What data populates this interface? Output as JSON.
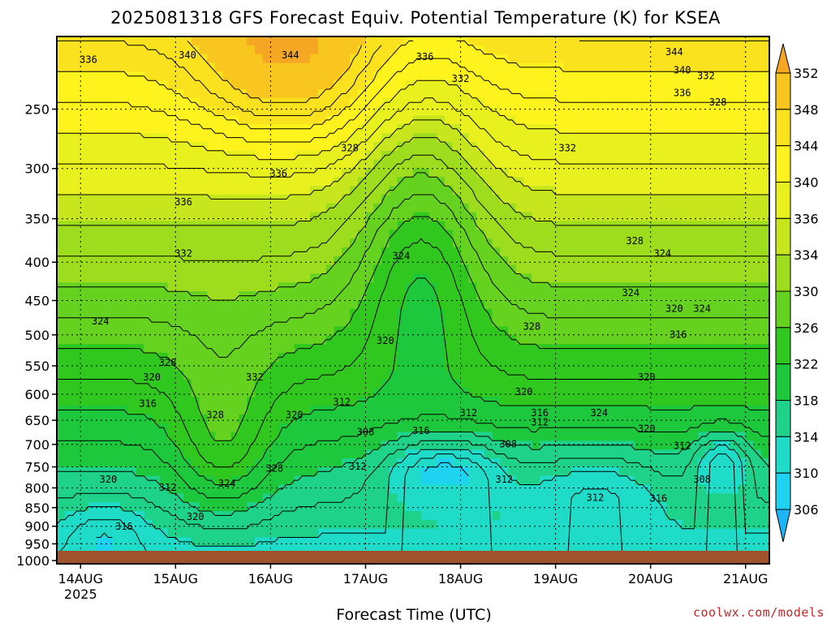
{
  "chart_data": {
    "type": "heatmap",
    "title": "2025081318 GFS Forecast Equiv. Potential Temperature (K) for KSEA",
    "xlabel": "Forecast Time (UTC)",
    "ylabel": "",
    "credit": "coolwx.com/models",
    "x_ticks": [
      {
        "label": "14AUG",
        "sublabel": "2025",
        "hour": 6
      },
      {
        "label": "15AUG",
        "sublabel": "",
        "hour": 30
      },
      {
        "label": "16AUG",
        "sublabel": "",
        "hour": 54
      },
      {
        "label": "17AUG",
        "sublabel": "",
        "hour": 78
      },
      {
        "label": "18AUG",
        "sublabel": "",
        "hour": 102
      },
      {
        "label": "19AUG",
        "sublabel": "",
        "hour": 126
      },
      {
        "label": "20AUG",
        "sublabel": "",
        "hour": 150
      },
      {
        "label": "21AUG",
        "sublabel": "",
        "hour": 174
      }
    ],
    "x_range_hours": [
      0,
      180
    ],
    "y_ticks": [
      250,
      300,
      350,
      400,
      450,
      500,
      550,
      600,
      650,
      700,
      750,
      800,
      850,
      900,
      950,
      1000
    ],
    "y_range_hPa": [
      200,
      1010
    ],
    "y_scale": "log-pressure",
    "grid": true,
    "colorbar": {
      "labels": [
        352,
        348,
        344,
        340,
        336,
        334,
        330,
        326,
        322,
        318,
        314,
        310,
        306
      ],
      "colors": [
        "#f5a623",
        "#f8c61e",
        "#fbe21e",
        "#fff31e",
        "#e8f01e",
        "#c8e61e",
        "#9edc1e",
        "#64d21e",
        "#30c81e",
        "#1ec83c",
        "#1ed28a",
        "#1edcc8",
        "#1ed2f0",
        "#1eb4f8"
      ]
    },
    "contour_labels": [
      {
        "text": "336",
        "hour": 8,
        "hPa": 215
      },
      {
        "text": "340",
        "hour": 33,
        "hPa": 212
      },
      {
        "text": "344",
        "hour": 59,
        "hPa": 212
      },
      {
        "text": "336",
        "hour": 93,
        "hPa": 213
      },
      {
        "text": "332",
        "hour": 102,
        "hPa": 228
      },
      {
        "text": "344",
        "hour": 156,
        "hPa": 210
      },
      {
        "text": "340",
        "hour": 158,
        "hPa": 222
      },
      {
        "text": "332",
        "hour": 164,
        "hPa": 226
      },
      {
        "text": "336",
        "hour": 158,
        "hPa": 238
      },
      {
        "text": "328",
        "hour": 167,
        "hPa": 245
      },
      {
        "text": "328",
        "hour": 74,
        "hPa": 282
      },
      {
        "text": "332",
        "hour": 129,
        "hPa": 282
      },
      {
        "text": "336",
        "hour": 56,
        "hPa": 305
      },
      {
        "text": "336",
        "hour": 32,
        "hPa": 333
      },
      {
        "text": "332",
        "hour": 32,
        "hPa": 390
      },
      {
        "text": "324",
        "hour": 87,
        "hPa": 393
      },
      {
        "text": "328",
        "hour": 146,
        "hPa": 375
      },
      {
        "text": "324",
        "hour": 153,
        "hPa": 390
      },
      {
        "text": "324",
        "hour": 145,
        "hPa": 440
      },
      {
        "text": "320",
        "hour": 156,
        "hPa": 462
      },
      {
        "text": "324",
        "hour": 163,
        "hPa": 462
      },
      {
        "text": "324",
        "hour": 11,
        "hPa": 480
      },
      {
        "text": "328",
        "hour": 120,
        "hPa": 488
      },
      {
        "text": "316",
        "hour": 157,
        "hPa": 500
      },
      {
        "text": "320",
        "hour": 83,
        "hPa": 510
      },
      {
        "text": "328",
        "hour": 28,
        "hPa": 545
      },
      {
        "text": "320",
        "hour": 24,
        "hPa": 570
      },
      {
        "text": "332",
        "hour": 50,
        "hPa": 570
      },
      {
        "text": "320",
        "hour": 149,
        "hPa": 570
      },
      {
        "text": "320",
        "hour": 118,
        "hPa": 596
      },
      {
        "text": "316",
        "hour": 23,
        "hPa": 618
      },
      {
        "text": "312",
        "hour": 72,
        "hPa": 615
      },
      {
        "text": "328",
        "hour": 40,
        "hPa": 640
      },
      {
        "text": "312",
        "hour": 104,
        "hPa": 636
      },
      {
        "text": "316",
        "hour": 122,
        "hPa": 636
      },
      {
        "text": "324",
        "hour": 137,
        "hPa": 636
      },
      {
        "text": "320",
        "hour": 60,
        "hPa": 640
      },
      {
        "text": "312",
        "hour": 122,
        "hPa": 655
      },
      {
        "text": "320",
        "hour": 149,
        "hPa": 668
      },
      {
        "text": "308",
        "hour": 78,
        "hPa": 675
      },
      {
        "text": "316",
        "hour": 92,
        "hPa": 672
      },
      {
        "text": "308",
        "hour": 114,
        "hPa": 700
      },
      {
        "text": "312",
        "hour": 158,
        "hPa": 704
      },
      {
        "text": "312",
        "hour": 76,
        "hPa": 750
      },
      {
        "text": "328",
        "hour": 55,
        "hPa": 755
      },
      {
        "text": "320",
        "hour": 13,
        "hPa": 780
      },
      {
        "text": "312",
        "hour": 113,
        "hPa": 780
      },
      {
        "text": "308",
        "hour": 163,
        "hPa": 780
      },
      {
        "text": "324",
        "hour": 43,
        "hPa": 790
      },
      {
        "text": "312",
        "hour": 28,
        "hPa": 800
      },
      {
        "text": "312",
        "hour": 136,
        "hPa": 825
      },
      {
        "text": "316",
        "hour": 152,
        "hPa": 828
      },
      {
        "text": "320",
        "hour": 35,
        "hPa": 875
      },
      {
        "text": "316",
        "hour": 17,
        "hPa": 902
      }
    ]
  }
}
